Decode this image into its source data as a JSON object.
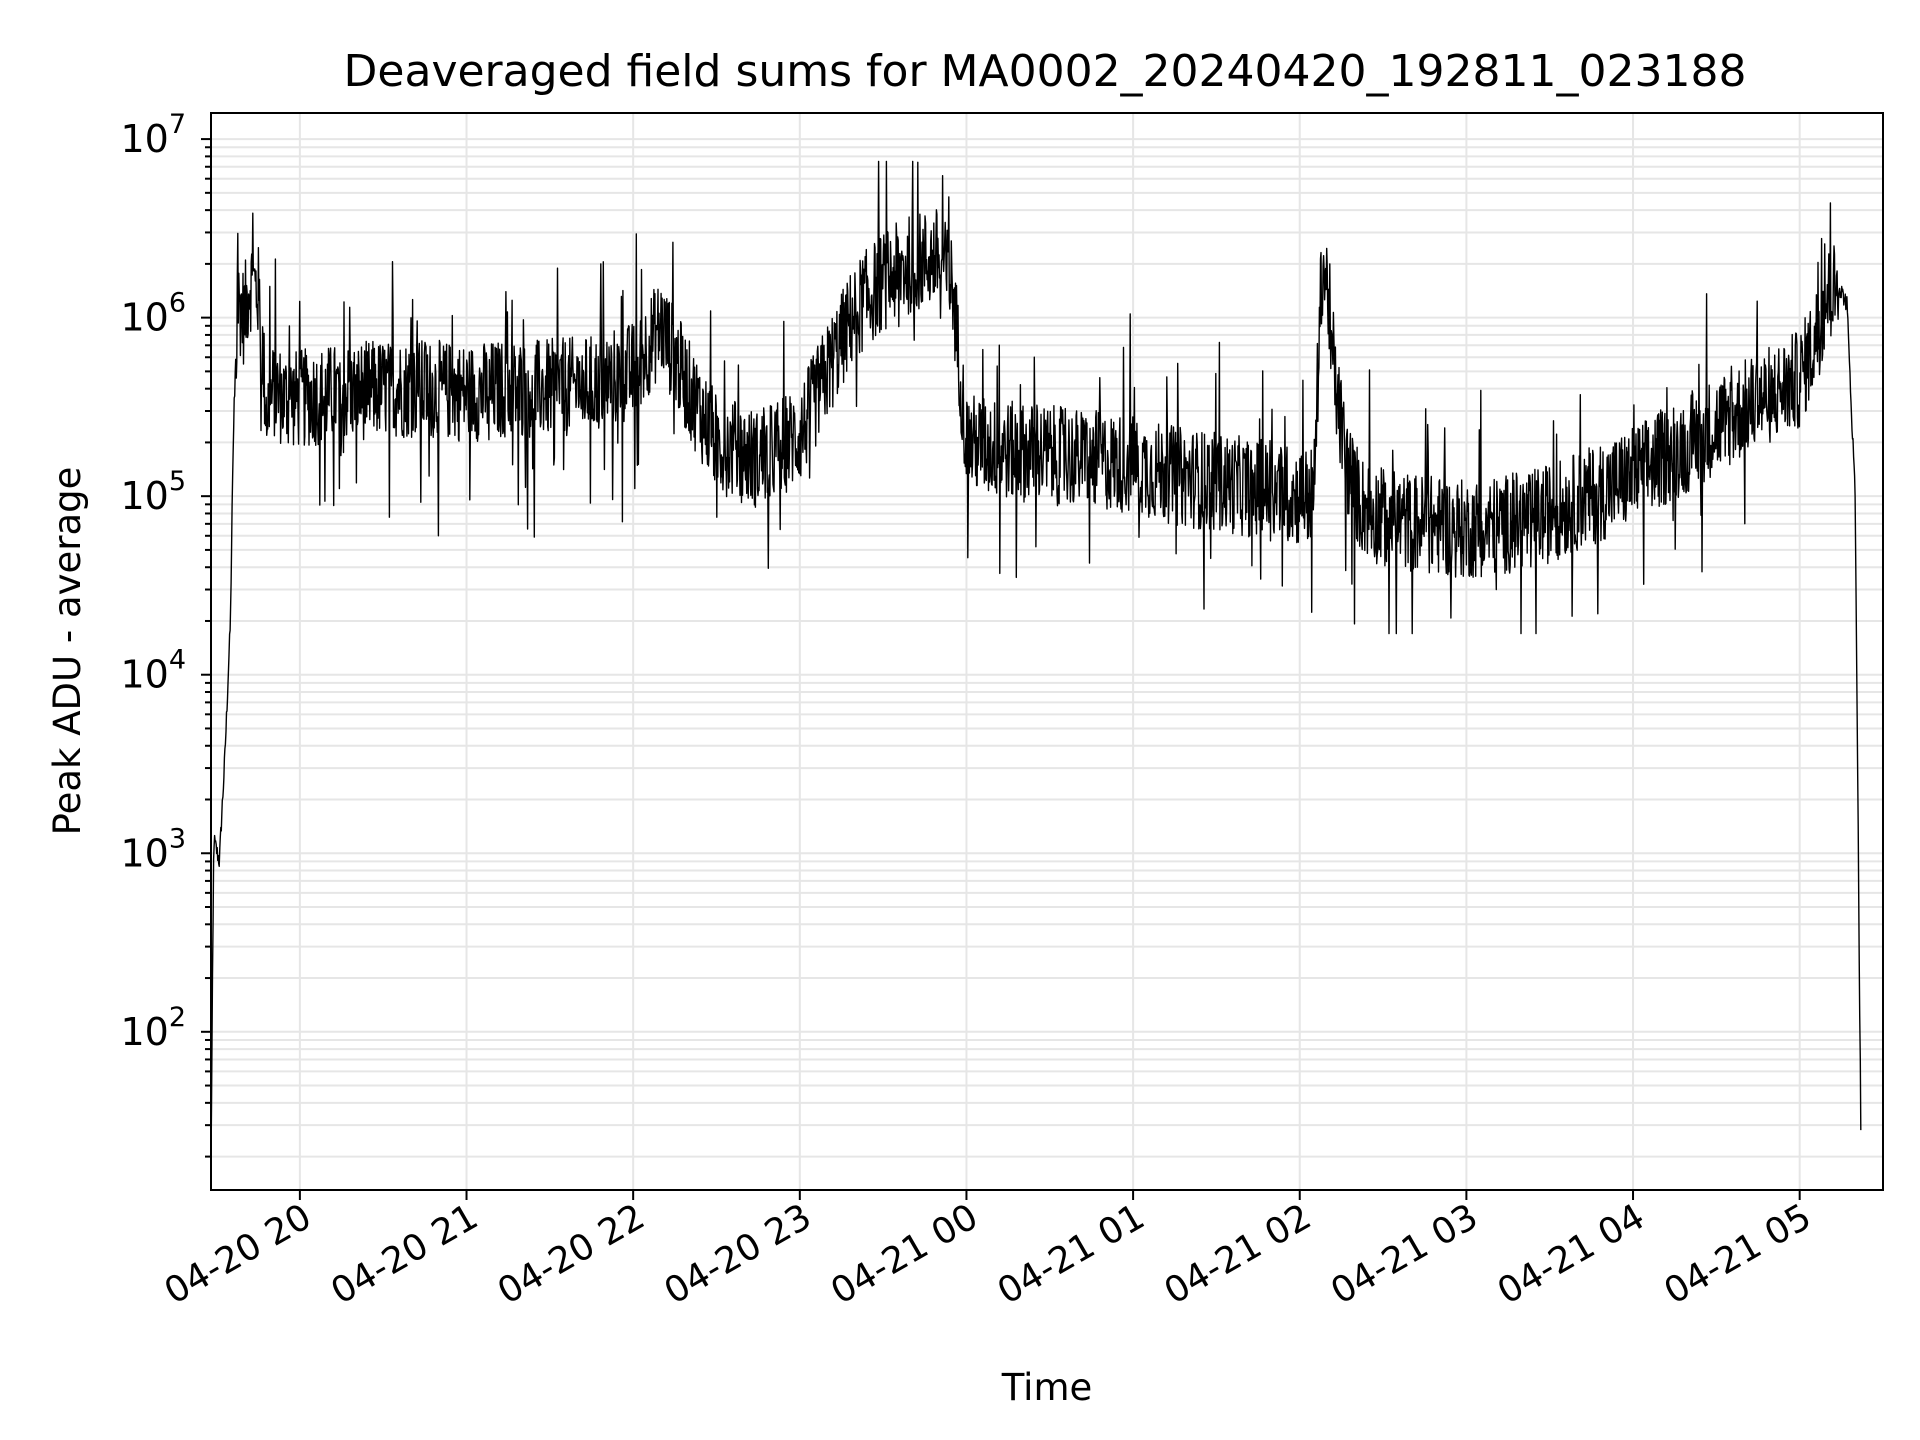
{
  "chart_data": {
    "type": "line",
    "title": "Deaveraged field sums for MA0002_20240420_192811_023188",
    "xlabel": "Time",
    "ylabel": "Peak ADU - average",
    "yscale": "log",
    "ylim": [
      13,
      14000000
    ],
    "xlim": [
      "2024-04-20 19:28",
      "2024-04-21 05:30"
    ],
    "grid": true,
    "line_color": "#000000",
    "x_ticks": [
      "04-20 20",
      "04-20 21",
      "04-20 22",
      "04-20 23",
      "04-21 00",
      "04-21 01",
      "04-21 02",
      "04-21 03",
      "04-21 04",
      "04-21 05"
    ],
    "y_ticks": [
      {
        "base": "10",
        "exp": "2",
        "value": 100
      },
      {
        "base": "10",
        "exp": "3",
        "value": 1000
      },
      {
        "base": "10",
        "exp": "4",
        "value": 10000
      },
      {
        "base": "10",
        "exp": "5",
        "value": 100000
      },
      {
        "base": "10",
        "exp": "6",
        "value": 1000000
      },
      {
        "base": "10",
        "exp": "7",
        "value": 10000000
      }
    ],
    "series": [
      {
        "x": [
          "2024-04-20 19:28",
          "2024-04-20 19:29",
          "2024-04-20 19:31",
          "2024-04-20 19:33",
          "2024-04-20 19:35",
          "2024-04-20 19:36",
          "2024-04-20 19:38",
          "2024-04-20 19:40",
          "2024-04-20 19:42",
          "2024-04-20 19:45",
          "2024-04-20 19:48",
          "2024-04-20 19:51",
          "2024-04-20 19:54",
          "2024-04-20 20:00",
          "2024-04-20 20:15",
          "2024-04-20 20:30",
          "2024-04-20 20:45",
          "2024-04-20 21:00",
          "2024-04-20 21:15",
          "2024-04-20 21:30",
          "2024-04-20 21:45",
          "2024-04-20 22:00",
          "2024-04-20 22:10",
          "2024-04-20 22:20",
          "2024-04-20 22:30",
          "2024-04-20 22:45",
          "2024-04-20 23:00",
          "2024-04-20 23:10",
          "2024-04-20 23:20",
          "2024-04-20 23:30",
          "2024-04-20 23:40",
          "2024-04-20 23:50",
          "2024-04-20 23:55",
          "2024-04-21 00:00",
          "2024-04-21 00:15",
          "2024-04-21 00:30",
          "2024-04-21 00:45",
          "2024-04-21 01:00",
          "2024-04-21 01:15",
          "2024-04-21 01:30",
          "2024-04-21 01:45",
          "2024-04-21 02:00",
          "2024-04-21 02:05",
          "2024-04-21 02:08",
          "2024-04-21 02:10",
          "2024-04-21 02:13",
          "2024-04-21 02:17",
          "2024-04-21 02:22",
          "2024-04-21 02:30",
          "2024-04-21 02:45",
          "2024-04-21 03:00",
          "2024-04-21 03:15",
          "2024-04-21 03:30",
          "2024-04-21 03:45",
          "2024-04-21 04:00",
          "2024-04-21 04:15",
          "2024-04-21 04:30",
          "2024-04-21 04:45",
          "2024-04-21 05:00",
          "2024-04-21 05:05",
          "2024-04-21 05:10",
          "2024-04-21 05:14",
          "2024-04-21 05:17",
          "2024-04-21 05:20",
          "2024-04-21 05:22"
        ],
        "y": [
          18.0,
          1200.0,
          900.0,
          3500.0,
          20000.0,
          200000.0,
          1200000.0,
          1000000.0,
          1600000.0,
          1400000.0,
          300000.0,
          400000.0,
          350000.0,
          350000.0,
          380000.0,
          400000.0,
          400000.0,
          380000.0,
          400000.0,
          400000.0,
          420000.0,
          500000.0,
          900000.0,
          400000.0,
          200000.0,
          160000.0,
          220000.0,
          500000.0,
          1100000.0,
          1600000.0,
          2000000.0,
          2200000.0,
          1500000.0,
          200000.0,
          180000.0,
          170000.0,
          160000.0,
          150000.0,
          130000.0,
          120000.0,
          110000.0,
          100000.0,
          100000.0,
          2000000.0,
          1500000.0,
          400000.0,
          150000.0,
          90000.0,
          75000.0,
          70000.0,
          65000.0,
          70000.0,
          80000.0,
          100000.0,
          130000.0,
          180000.0,
          250000.0,
          340000.0,
          450000.0,
          700000.0,
          1300000.0,
          1500000.0,
          1200000.0,
          100000.0,
          30.0
        ],
        "noise_dex": 0.28,
        "min_y_range": [
          17000.0,
          7500000.0
        ]
      }
    ]
  }
}
